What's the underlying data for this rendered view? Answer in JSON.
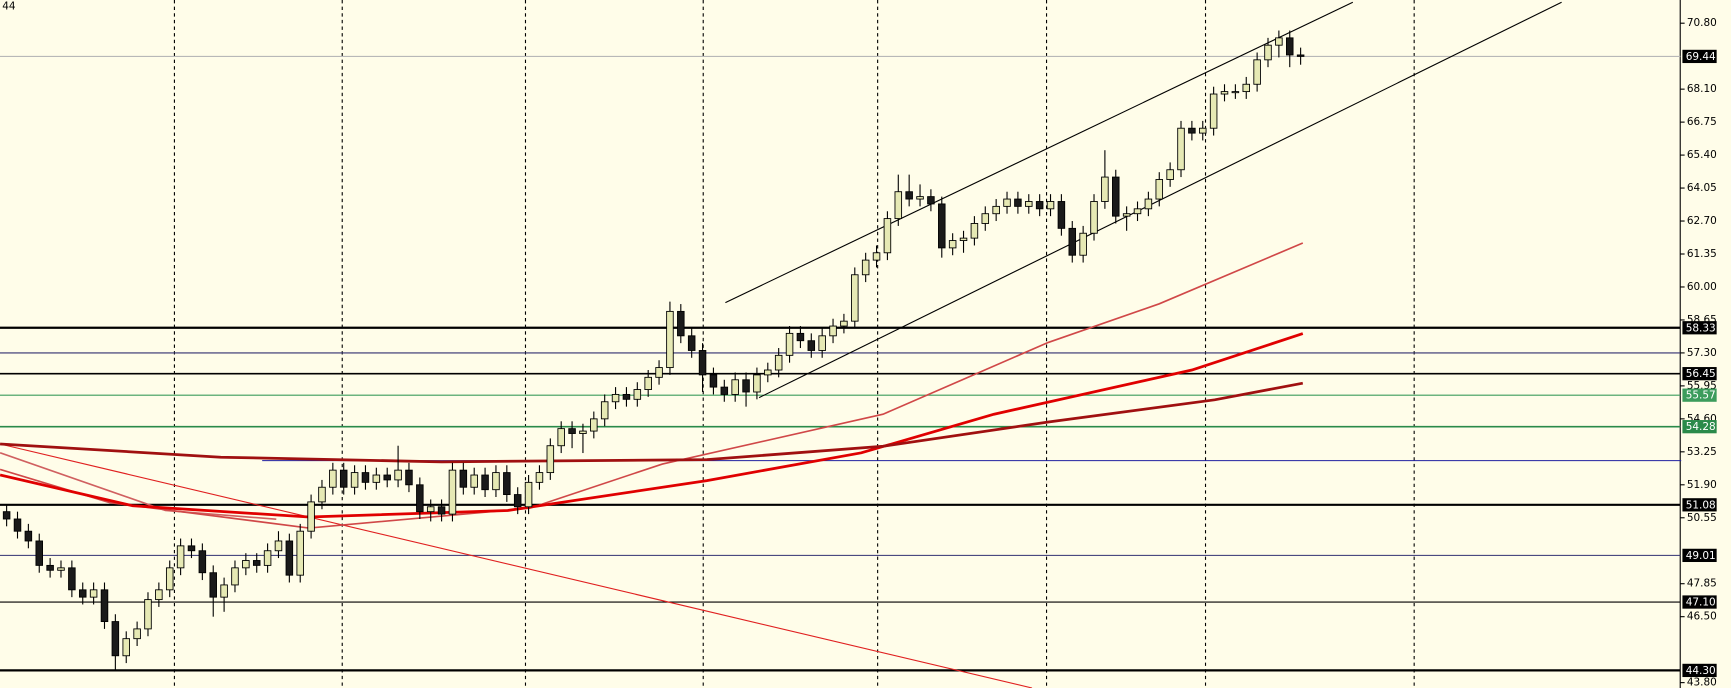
{
  "chart_data": {
    "type": "candlestick",
    "corner_label": "44",
    "ylim": [
      43.58,
      71.75
    ],
    "yticks": [
      {
        "value": 70.8,
        "label": "70.80"
      },
      {
        "value": 68.1,
        "label": "68.10"
      },
      {
        "value": 66.75,
        "label": "66.75"
      },
      {
        "value": 65.4,
        "label": "65.40"
      },
      {
        "value": 64.05,
        "label": "64.05"
      },
      {
        "value": 62.7,
        "label": "62.70"
      },
      {
        "value": 61.35,
        "label": "61.35"
      },
      {
        "value": 60,
        "label": "60.00"
      },
      {
        "value": 58.65,
        "label": "58.65"
      },
      {
        "value": 57.3,
        "label": "57.30"
      },
      {
        "value": 55.95,
        "label": "55.95"
      },
      {
        "value": 54.6,
        "label": "54.60"
      },
      {
        "value": 53.25,
        "label": "53.25"
      },
      {
        "value": 51.9,
        "label": "51.90"
      },
      {
        "value": 50.55,
        "label": "50.55"
      },
      {
        "value": 47.85,
        "label": "47.85"
      },
      {
        "value": 46.5,
        "label": "46.50"
      },
      {
        "value": 43.8,
        "label": "43.80"
      }
    ],
    "up_color": "#e6e9b4",
    "down_color": "#1a1a1a",
    "background": "#fffde9",
    "candles": [
      [
        50.8,
        51.1,
        50.2,
        50.5
      ],
      [
        50.5,
        50.8,
        49.7,
        50.0
      ],
      [
        50.0,
        50.3,
        49.3,
        49.6
      ],
      [
        49.6,
        49.9,
        48.3,
        48.6
      ],
      [
        48.6,
        48.9,
        48.1,
        48.4
      ],
      [
        48.4,
        48.8,
        48.1,
        48.5
      ],
      [
        48.5,
        48.8,
        47.3,
        47.6
      ],
      [
        47.6,
        47.9,
        47.0,
        47.3
      ],
      [
        47.3,
        47.9,
        47.0,
        47.6
      ],
      [
        47.6,
        47.9,
        46.0,
        46.3
      ],
      [
        46.3,
        46.6,
        44.3,
        44.9
      ],
      [
        44.9,
        45.9,
        44.6,
        45.6
      ],
      [
        45.6,
        46.3,
        45.3,
        46.0
      ],
      [
        46.0,
        47.5,
        45.7,
        47.2
      ],
      [
        47.2,
        47.9,
        46.9,
        47.6
      ],
      [
        47.6,
        48.8,
        47.3,
        48.5
      ],
      [
        48.5,
        49.7,
        48.2,
        49.4
      ],
      [
        49.4,
        49.7,
        48.9,
        49.2
      ],
      [
        49.2,
        49.5,
        48.0,
        48.3
      ],
      [
        48.3,
        48.6,
        46.5,
        47.3
      ],
      [
        47.3,
        48.1,
        46.7,
        47.8
      ],
      [
        47.8,
        48.8,
        47.5,
        48.5
      ],
      [
        48.5,
        49.1,
        48.2,
        48.8
      ],
      [
        48.8,
        49.1,
        48.3,
        48.6
      ],
      [
        48.6,
        49.5,
        48.3,
        49.2
      ],
      [
        49.2,
        50.0,
        48.9,
        49.6
      ],
      [
        49.6,
        49.9,
        47.9,
        48.2
      ],
      [
        48.2,
        50.3,
        47.9,
        50.0
      ],
      [
        50.0,
        51.5,
        49.7,
        51.2
      ],
      [
        51.2,
        52.1,
        50.9,
        51.8
      ],
      [
        51.8,
        52.8,
        51.5,
        52.5
      ],
      [
        52.5,
        52.8,
        51.5,
        51.8
      ],
      [
        51.8,
        52.7,
        51.5,
        52.4
      ],
      [
        52.4,
        52.7,
        51.7,
        52.0
      ],
      [
        52.0,
        52.6,
        51.7,
        52.3
      ],
      [
        52.3,
        52.6,
        51.8,
        52.1
      ],
      [
        52.1,
        53.5,
        51.8,
        52.5
      ],
      [
        52.5,
        52.8,
        51.6,
        51.9
      ],
      [
        51.9,
        52.2,
        50.5,
        50.8
      ],
      [
        50.8,
        51.3,
        50.4,
        51.0
      ],
      [
        51.0,
        51.3,
        50.4,
        50.7
      ],
      [
        50.7,
        52.8,
        50.4,
        52.5
      ],
      [
        52.5,
        52.8,
        51.5,
        51.8
      ],
      [
        51.8,
        52.6,
        51.5,
        52.3
      ],
      [
        52.3,
        52.6,
        51.4,
        51.7
      ],
      [
        51.7,
        52.7,
        51.4,
        52.4
      ],
      [
        52.4,
        52.7,
        51.2,
        51.5
      ],
      [
        51.5,
        51.8,
        50.7,
        51.0
      ],
      [
        51.0,
        52.3,
        50.7,
        52.0
      ],
      [
        52.0,
        52.7,
        51.7,
        52.4
      ],
      [
        52.4,
        53.8,
        52.1,
        53.5
      ],
      [
        53.5,
        54.5,
        53.2,
        54.2
      ],
      [
        54.2,
        54.5,
        53.4,
        54.0
      ],
      [
        54.0,
        54.4,
        53.2,
        54.1
      ],
      [
        54.1,
        54.9,
        53.8,
        54.6
      ],
      [
        54.6,
        55.6,
        54.3,
        55.3
      ],
      [
        55.3,
        55.9,
        55.0,
        55.6
      ],
      [
        55.6,
        55.9,
        55.1,
        55.4
      ],
      [
        55.4,
        56.1,
        55.1,
        55.8
      ],
      [
        55.8,
        56.6,
        55.5,
        56.3
      ],
      [
        56.3,
        57.0,
        56.0,
        56.7
      ],
      [
        56.7,
        59.4,
        56.4,
        59.0
      ],
      [
        59.0,
        59.3,
        57.7,
        58.0
      ],
      [
        58.0,
        58.3,
        57.1,
        57.4
      ],
      [
        57.4,
        57.7,
        55.7,
        56.4
      ],
      [
        56.4,
        56.7,
        55.6,
        55.9
      ],
      [
        55.9,
        56.2,
        55.3,
        55.6
      ],
      [
        55.6,
        56.5,
        55.3,
        56.2
      ],
      [
        56.2,
        56.5,
        55.1,
        55.7
      ],
      [
        55.7,
        56.7,
        55.4,
        56.4
      ],
      [
        56.4,
        56.9,
        56.1,
        56.6
      ],
      [
        56.6,
        57.5,
        56.3,
        57.2
      ],
      [
        57.2,
        58.4,
        56.9,
        58.1
      ],
      [
        58.1,
        58.4,
        57.5,
        57.8
      ],
      [
        57.8,
        58.1,
        57.1,
        57.4
      ],
      [
        57.4,
        58.3,
        57.1,
        58.0
      ],
      [
        58.0,
        58.7,
        57.7,
        58.4
      ],
      [
        58.4,
        58.9,
        58.1,
        58.6
      ],
      [
        58.6,
        60.8,
        58.3,
        60.5
      ],
      [
        60.5,
        61.4,
        60.2,
        61.1
      ],
      [
        61.1,
        61.7,
        60.8,
        61.4
      ],
      [
        61.4,
        63.1,
        61.1,
        62.8
      ],
      [
        62.8,
        64.6,
        62.5,
        63.9
      ],
      [
        63.9,
        64.6,
        63.3,
        63.6
      ],
      [
        63.6,
        64.2,
        63.3,
        63.7
      ],
      [
        63.7,
        64.0,
        63.1,
        63.4
      ],
      [
        63.4,
        63.7,
        61.2,
        61.6
      ],
      [
        61.6,
        62.2,
        61.3,
        61.9
      ],
      [
        61.9,
        62.3,
        61.4,
        62.0
      ],
      [
        62.0,
        62.9,
        61.7,
        62.6
      ],
      [
        62.6,
        63.3,
        62.3,
        63.0
      ],
      [
        63.0,
        63.6,
        62.7,
        63.3
      ],
      [
        63.3,
        63.9,
        63.0,
        63.6
      ],
      [
        63.6,
        63.9,
        63.0,
        63.3
      ],
      [
        63.3,
        63.8,
        63.0,
        63.5
      ],
      [
        63.5,
        63.8,
        62.9,
        63.2
      ],
      [
        63.2,
        63.8,
        62.9,
        63.5
      ],
      [
        63.5,
        63.8,
        62.1,
        62.4
      ],
      [
        62.4,
        62.7,
        61.0,
        61.3
      ],
      [
        61.3,
        62.5,
        61.0,
        62.2
      ],
      [
        62.2,
        63.8,
        61.9,
        63.5
      ],
      [
        63.5,
        65.6,
        63.2,
        64.5
      ],
      [
        64.5,
        64.8,
        62.6,
        62.9
      ],
      [
        62.9,
        63.3,
        62.3,
        63.0
      ],
      [
        63.0,
        63.5,
        62.7,
        63.2
      ],
      [
        63.2,
        63.9,
        62.9,
        63.6
      ],
      [
        63.6,
        64.7,
        63.3,
        64.4
      ],
      [
        64.4,
        65.1,
        64.1,
        64.8
      ],
      [
        64.8,
        66.8,
        64.5,
        66.5
      ],
      [
        66.5,
        66.8,
        66.0,
        66.3
      ],
      [
        66.3,
        66.8,
        66.0,
        66.5
      ],
      [
        66.5,
        68.2,
        66.2,
        67.9
      ],
      [
        67.9,
        68.3,
        67.6,
        68.0
      ],
      [
        68.0,
        68.3,
        67.7,
        68.0
      ],
      [
        68.0,
        68.6,
        67.7,
        68.3
      ],
      [
        68.3,
        69.6,
        68.0,
        69.3
      ],
      [
        69.3,
        70.2,
        69.0,
        69.9
      ],
      [
        69.9,
        70.5,
        69.4,
        70.2
      ],
      [
        70.2,
        70.5,
        69.0,
        69.5
      ],
      [
        69.5,
        69.8,
        69.1,
        69.44
      ]
    ],
    "hlines": [
      {
        "value": 69.44,
        "label": "69.44",
        "color": "#b8b8b8",
        "width": 1,
        "box": "#000000"
      },
      {
        "value": 58.33,
        "label": "58.33",
        "color": "#000000",
        "width": 2,
        "box": "#000000"
      },
      {
        "value": 57.3,
        "color": "#303070",
        "width": 1
      },
      {
        "value": 56.45,
        "label": "56.45",
        "color": "#000000",
        "width": 1.5,
        "box": "#000000"
      },
      {
        "value": 55.57,
        "label": "55.57",
        "color": "#3c9c5c",
        "width": 1,
        "box": "#3c9c5c"
      },
      {
        "value": 54.28,
        "label": "54.28",
        "color": "#2a8a4a",
        "width": 1.5,
        "box": "#2a8a4a"
      },
      {
        "value": 51.08,
        "label": "51.08",
        "color": "#000000",
        "width": 2,
        "box": "#000000"
      },
      {
        "value": 49.01,
        "label": "49.01",
        "color": "#303070",
        "width": 1,
        "box": "#000000"
      },
      {
        "value": 47.1,
        "label": "47.10",
        "color": "#000000",
        "width": 1,
        "box": "#000000"
      },
      {
        "value": 44.3,
        "label": "44.30",
        "color": "#000000",
        "width": 2,
        "box": "#000000"
      }
    ],
    "overlays": [
      {
        "color": "#000000",
        "width": 1,
        "x": [
          66.1,
          123.8
        ],
        "values": [
          59.36,
          71.66
        ]
      },
      {
        "color": "#000000",
        "width": 1,
        "x": [
          69.2,
          143.0
        ],
        "values": [
          55.47,
          71.66
        ]
      },
      {
        "color": "#e02020",
        "width": 1,
        "x": [
          -0.6,
          94.3
        ],
        "values": [
          53.57,
          43.58
        ]
      },
      {
        "color": "#2020a0",
        "width": 1,
        "x": [
          23.5,
          154.0
        ],
        "values": [
          52.89,
          52.89
        ]
      },
      {
        "color": "#d06060",
        "width": 1.5,
        "x": [
          -0.6,
          14.6,
          24.8
        ],
        "values": [
          53.21,
          50.85,
          50.49
        ]
      },
      {
        "color": "#d04848",
        "width": 1.5,
        "x": [
          -0.6,
          9.5,
          27.8,
          48.1,
          60.3,
          80.6,
          95.8,
          106.0,
          119.2
        ],
        "values": [
          52.53,
          51.17,
          50.13,
          50.94,
          52.75,
          54.79,
          57.73,
          59.31,
          61.8
        ]
      },
      {
        "color": "#e00000",
        "width": 2.5,
        "x": [
          -0.6,
          11.6,
          27.8,
          46.1,
          64.4,
          78.6,
          90.8,
          109.0,
          119.2
        ],
        "values": [
          52.3,
          51.04,
          50.58,
          50.85,
          52.07,
          53.21,
          54.79,
          56.6,
          58.09
        ]
      },
      {
        "color": "#a01010",
        "width": 2.5,
        "x": [
          -0.6,
          19.7,
          40.0,
          64.4,
          80.6,
          95.8,
          111.1,
          119.2
        ],
        "values": [
          53.57,
          53.03,
          52.84,
          52.93,
          53.48,
          54.47,
          55.38,
          56.06
        ]
      }
    ]
  }
}
